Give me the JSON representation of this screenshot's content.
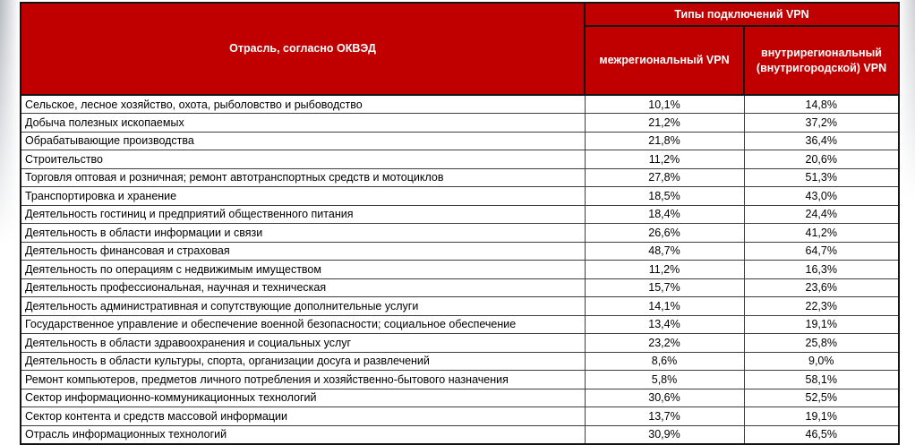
{
  "table": {
    "header": {
      "industry": "Отрасль, согласно ОКВЭД",
      "vpn_types": "Типы подключений VPN",
      "interregional": "межрегиональный VPN",
      "intraregional": "внутрирегиональный (внутригородской) VPN"
    },
    "rows": [
      {
        "industry": "Сельское, лесное хозяйство, охота, рыболовство и рыбоводство",
        "interregional": "10,1%",
        "intraregional": "14,8%"
      },
      {
        "industry": "Добыча полезных ископаемых",
        "interregional": "21,2%",
        "intraregional": "37,2%"
      },
      {
        "industry": "Обрабатывающие производства",
        "interregional": "21,8%",
        "intraregional": "36,4%"
      },
      {
        "industry": "Строительство",
        "interregional": "11,2%",
        "intraregional": "20,6%"
      },
      {
        "industry": "Торговля оптовая и розничная; ремонт автотранспортных средств и мотоциклов",
        "interregional": "27,8%",
        "intraregional": "51,3%"
      },
      {
        "industry": "Транспортировка и хранение",
        "interregional": "18,5%",
        "intraregional": "43,0%"
      },
      {
        "industry": "Деятельность гостиниц и предприятий общественного питания",
        "interregional": "18,4%",
        "intraregional": "24,4%"
      },
      {
        "industry": "Деятельность в области информации и связи",
        "interregional": "26,6%",
        "intraregional": "41,2%"
      },
      {
        "industry": "Деятельность финансовая и страховая",
        "interregional": "48,7%",
        "intraregional": "64,7%"
      },
      {
        "industry": "Деятельность по операциям с недвижимым имуществом",
        "interregional": "11,2%",
        "intraregional": "16,3%"
      },
      {
        "industry": "Деятельность профессиональная, научная и техническая",
        "interregional": "15,7%",
        "intraregional": "23,6%"
      },
      {
        "industry": "Деятельность административная и сопутствующие дополнительные услуги",
        "interregional": "14,1%",
        "intraregional": "22,3%"
      },
      {
        "industry": "Государственное управление и обеспечение военной безопасности; социальное обеспечение",
        "interregional": "13,4%",
        "intraregional": "19,1%"
      },
      {
        "industry": "Деятельность в области здравоохранения и социальных услуг",
        "interregional": "23,2%",
        "intraregional": "25,8%"
      },
      {
        "industry": "Деятельность в области культуры, спорта, организации досуга и развлечений",
        "interregional": "8,6%",
        "intraregional": "9,0%"
      },
      {
        "industry": "Ремонт компьютеров, предметов личного потребления и хозяйственно-бытового назначения",
        "interregional": "5,8%",
        "intraregional": "58,1%"
      },
      {
        "industry": "Сектор информационно-коммуникационных технологий",
        "interregional": "30,6%",
        "intraregional": "52,5%"
      },
      {
        "industry": "Сектор контента и средств массовой информации",
        "interregional": "13,7%",
        "intraregional": "19,1%"
      },
      {
        "industry": "Отрасль информационных технологий",
        "interregional": "30,9%",
        "intraregional": "46,5%"
      }
    ]
  },
  "chart_data": {
    "type": "table",
    "title": "Типы подключений VPN",
    "categories": [
      "Сельское, лесное хозяйство, охота, рыболовство и рыбоводство",
      "Добыча полезных ископаемых",
      "Обрабатывающие производства",
      "Строительство",
      "Торговля оптовая и розничная; ремонт автотранспортных средств и мотоциклов",
      "Транспортировка и хранение",
      "Деятельность гостиниц и предприятий общественного питания",
      "Деятельность в области информации и связи",
      "Деятельность финансовая и страховая",
      "Деятельность по операциям с недвижимым имуществом",
      "Деятельность профессиональная, научная и техническая",
      "Деятельность административная и сопутствующие дополнительные услуги",
      "Государственное управление и обеспечение военной безопасности; социальное обеспечение",
      "Деятельность в области здравоохранения и социальных услуг",
      "Деятельность в области культуры, спорта, организации досуга и развлечений",
      "Ремонт компьютеров, предметов личного потребления и хозяйственно-бытового назначения",
      "Сектор информационно-коммуникационных технологий",
      "Сектор контента и средств массовой информации",
      "Отрасль информационных технологий"
    ],
    "series": [
      {
        "name": "межрегиональный VPN",
        "values": [
          10.1,
          21.2,
          21.8,
          11.2,
          27.8,
          18.5,
          18.4,
          26.6,
          48.7,
          11.2,
          15.7,
          14.1,
          13.4,
          23.2,
          8.6,
          5.8,
          30.6,
          13.7,
          30.9
        ]
      },
      {
        "name": "внутрирегиональный (внутригородской) VPN",
        "values": [
          14.8,
          37.2,
          36.4,
          20.6,
          51.3,
          43.0,
          24.4,
          41.2,
          64.7,
          16.3,
          23.6,
          22.3,
          19.1,
          25.8,
          9.0,
          58.1,
          52.5,
          19.1,
          46.5
        ]
      }
    ],
    "unit": "%"
  },
  "colors": {
    "header_background": "#c00000",
    "header_text": "#ffffff",
    "body_text": "#000000",
    "grid_line": "#3d3d3d",
    "outer_border": "#141414"
  }
}
